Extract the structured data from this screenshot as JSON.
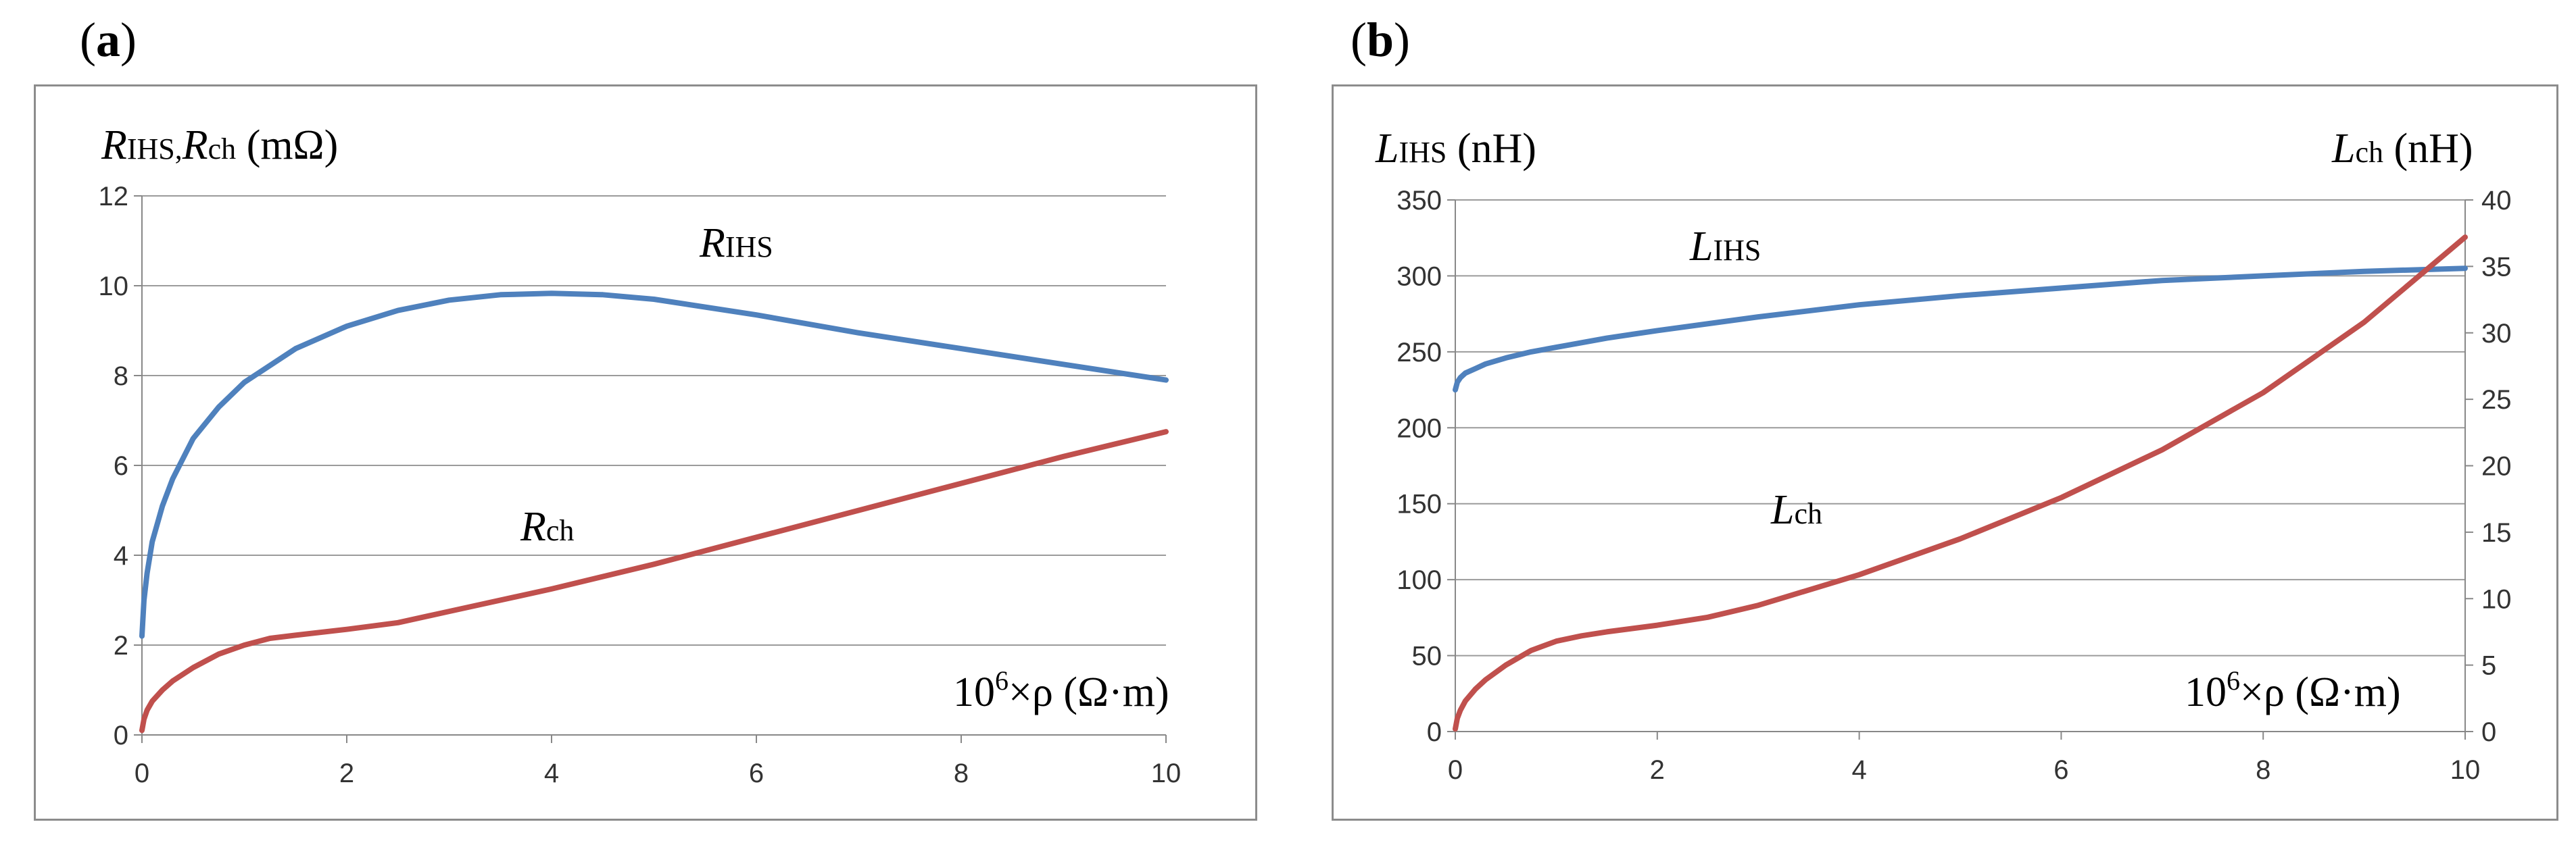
{
  "panels": [
    {
      "label": "a",
      "ylabel": {
        "main": "R",
        "sub": "IHS,",
        "main2": "R",
        "sub2": "ch",
        "unit": " (mΩ)"
      },
      "xlabel": {
        "base": "10",
        "sup": "6",
        "rest": "×ρ (Ω·m)"
      },
      "series_labels": [
        {
          "main": "R",
          "sub": "IHS"
        },
        {
          "main": "R",
          "sub": "ch"
        }
      ]
    },
    {
      "label": "b",
      "ylabel_left": {
        "main": "L",
        "sub": "IHS",
        "unit": " (nH)"
      },
      "ylabel_right": {
        "main": "L",
        "sub": "ch",
        "unit": " (nH)"
      },
      "xlabel": {
        "base": "10",
        "sup": "6",
        "rest": "×ρ (Ω·m)"
      },
      "series_labels": [
        {
          "main": "L",
          "sub": "IHS"
        },
        {
          "main": "L",
          "sub": "ch"
        }
      ]
    }
  ],
  "colors": {
    "blue": "#4F81BD",
    "red": "#C0504D",
    "grid": "#9b9b9b"
  },
  "chart_data": [
    {
      "type": "line",
      "title": "",
      "xlabel": "10^6×ρ (Ω·m)",
      "ylabel": "R_IHS, R_ch (mΩ)",
      "xlim": [
        0,
        10
      ],
      "ylim": [
        0,
        12
      ],
      "xticks": [
        0,
        2,
        4,
        6,
        8,
        10
      ],
      "yticks": [
        0,
        2,
        4,
        6,
        8,
        10,
        12
      ],
      "series": [
        {
          "name": "R_IHS",
          "color": "#4F81BD",
          "x": [
            0.0,
            0.02,
            0.05,
            0.1,
            0.2,
            0.3,
            0.5,
            0.75,
            1.0,
            1.5,
            2.0,
            2.5,
            3.0,
            3.5,
            4.0,
            4.5,
            5.0,
            6.0,
            7.0,
            8.0,
            9.0,
            10.0
          ],
          "values": [
            2.2,
            3.0,
            3.6,
            4.3,
            5.1,
            5.7,
            6.6,
            7.3,
            7.85,
            8.6,
            9.1,
            9.45,
            9.68,
            9.8,
            9.83,
            9.8,
            9.7,
            9.35,
            8.95,
            8.6,
            8.25,
            7.9
          ]
        },
        {
          "name": "R_ch",
          "color": "#C0504D",
          "x": [
            0.0,
            0.02,
            0.05,
            0.1,
            0.2,
            0.3,
            0.5,
            0.75,
            1.0,
            1.25,
            1.5,
            2.0,
            2.5,
            3.0,
            4.0,
            5.0,
            6.0,
            7.0,
            8.0,
            9.0,
            10.0
          ],
          "values": [
            0.1,
            0.35,
            0.55,
            0.75,
            1.0,
            1.2,
            1.5,
            1.8,
            2.0,
            2.15,
            2.22,
            2.35,
            2.5,
            2.75,
            3.25,
            3.8,
            4.4,
            5.0,
            5.6,
            6.2,
            6.75
          ]
        }
      ]
    },
    {
      "type": "line",
      "title": "",
      "xlabel": "10^6×ρ (Ω·m)",
      "ylabel": "L_IHS (nH)",
      "ylabel_right": "L_ch (nH)",
      "xlim": [
        0,
        10
      ],
      "ylim": [
        0,
        350
      ],
      "ylim_right": [
        0,
        40
      ],
      "xticks": [
        0,
        2,
        4,
        6,
        8,
        10
      ],
      "yticks": [
        0,
        50,
        100,
        150,
        200,
        250,
        300,
        350
      ],
      "yticks_right": [
        0,
        5,
        10,
        15,
        20,
        25,
        30,
        35,
        40
      ],
      "series": [
        {
          "name": "L_IHS",
          "axis": "left",
          "color": "#4F81BD",
          "x": [
            0.0,
            0.02,
            0.05,
            0.1,
            0.2,
            0.3,
            0.5,
            0.75,
            1.0,
            1.5,
            2.0,
            3.0,
            4.0,
            5.0,
            6.0,
            7.0,
            8.0,
            9.0,
            10.0
          ],
          "values": [
            225,
            230,
            233,
            236,
            239,
            242,
            246,
            250,
            253,
            259,
            264,
            273,
            281,
            287,
            292,
            297,
            300,
            303,
            305
          ]
        },
        {
          "name": "L_ch",
          "axis": "right",
          "color": "#C0504D",
          "x": [
            0.0,
            0.02,
            0.05,
            0.1,
            0.2,
            0.3,
            0.5,
            0.75,
            1.0,
            1.25,
            1.5,
            2.0,
            2.5,
            3.0,
            4.0,
            5.0,
            6.0,
            7.0,
            8.0,
            9.0,
            10.0
          ],
          "values": [
            0.2,
            1.0,
            1.6,
            2.3,
            3.2,
            3.9,
            5.0,
            6.1,
            6.8,
            7.2,
            7.5,
            8.0,
            8.6,
            9.5,
            11.8,
            14.5,
            17.6,
            21.2,
            25.5,
            30.8,
            37.2
          ]
        }
      ]
    }
  ]
}
